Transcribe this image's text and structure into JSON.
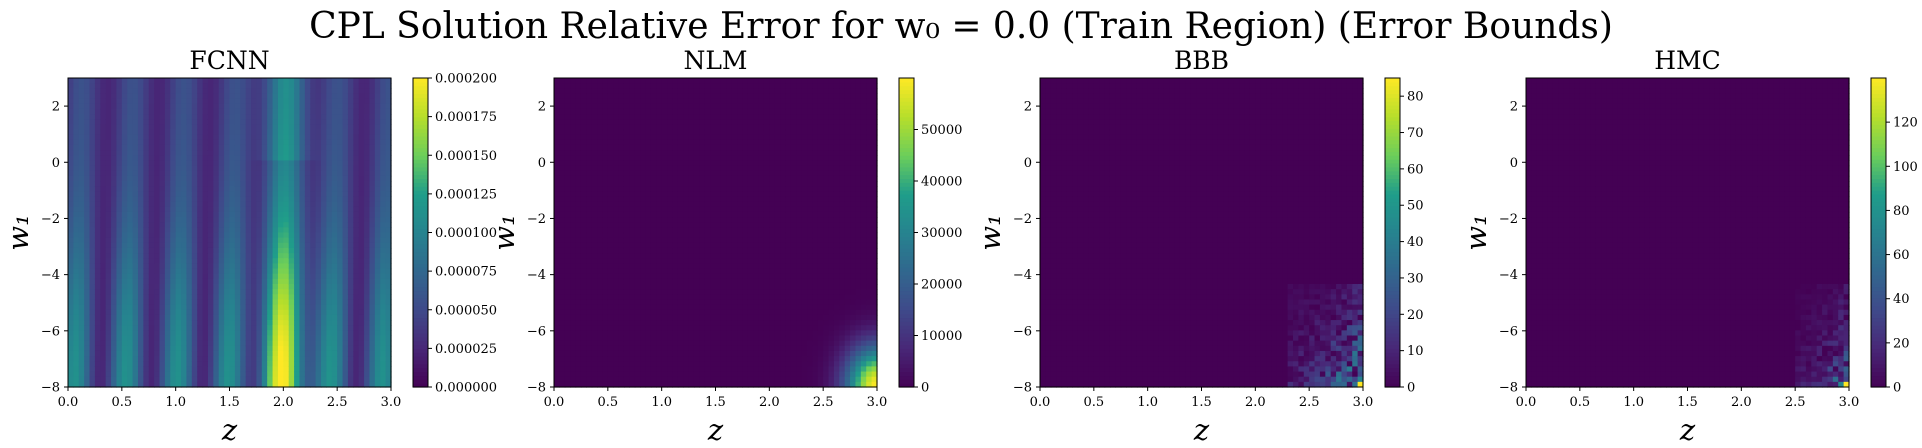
{
  "figure": {
    "title": "CPL Solution Relative Error for w₀ = 0.0 (Train Region) (Error Bounds)"
  },
  "colors": {
    "colormap": [
      "#440154",
      "#482777",
      "#3f4a8a",
      "#31678e",
      "#26838f",
      "#1f9d8a",
      "#6cce5a",
      "#b6de2b",
      "#fee825"
    ]
  },
  "chart_data": [
    {
      "type": "heatmap",
      "title": "FCNN",
      "xlabel": "z",
      "ylabel": "w₁",
      "xlim": [
        0.0,
        3.0
      ],
      "ylim": [
        -8,
        3
      ],
      "xticks": [
        "0.0",
        "0.5",
        "1.0",
        "1.5",
        "2.0",
        "2.5",
        "3.0"
      ],
      "yticks": [
        "−8",
        "−6",
        "−4",
        "−2",
        "0",
        "2"
      ],
      "colorbar": {
        "range": [
          0.0,
          0.0002
        ],
        "ticks": [
          "0.000000",
          "0.000025",
          "0.000050",
          "0.000075",
          "0.000100",
          "0.000125",
          "0.000150",
          "0.000175",
          "0.000200"
        ]
      },
      "field": "stripes: vertical bands in z, strongest near z=2.0 at w1=-8 (~0.0002)"
    },
    {
      "type": "heatmap",
      "title": "NLM",
      "xlabel": "z",
      "ylabel": "w₁",
      "xlim": [
        0.0,
        3.0
      ],
      "ylim": [
        -8,
        3
      ],
      "xticks": [
        "0.0",
        "0.5",
        "1.0",
        "1.5",
        "2.0",
        "2.5",
        "3.0"
      ],
      "yticks": [
        "−8",
        "−6",
        "−4",
        "−2",
        "0",
        "2"
      ],
      "colorbar": {
        "range": [
          0,
          60000
        ],
        "ticks": [
          "0",
          "10000",
          "20000",
          "30000",
          "40000",
          "50000"
        ]
      },
      "field": "near zero everywhere, rising smoothly toward corner z=3.0, w1=-8 (~60000)"
    },
    {
      "type": "heatmap",
      "title": "BBB",
      "xlabel": "z",
      "ylabel": "w₁",
      "xlim": [
        0.0,
        3.0
      ],
      "ylim": [
        -8,
        3
      ],
      "xticks": [
        "0.0",
        "0.5",
        "1.0",
        "1.5",
        "2.0",
        "2.5",
        "3.0"
      ],
      "yticks": [
        "−8",
        "−6",
        "−4",
        "−2",
        "0",
        "2"
      ],
      "colorbar": {
        "range": [
          0,
          85
        ],
        "ticks": [
          "0",
          "10",
          "20",
          "30",
          "40",
          "50",
          "60",
          "70",
          "80"
        ]
      },
      "field": "near zero except noisy patch for z>2.3, w1<-5, peak ~85 at z=3.0, w1=-8"
    },
    {
      "type": "heatmap",
      "title": "HMC",
      "xlabel": "z",
      "ylabel": "w₁",
      "xlim": [
        0.0,
        3.0
      ],
      "ylim": [
        -8,
        3
      ],
      "xticks": [
        "0.0",
        "0.5",
        "1.0",
        "1.5",
        "2.0",
        "2.5",
        "3.0"
      ],
      "yticks": [
        "−8",
        "−6",
        "−4",
        "−2",
        "0",
        "2"
      ],
      "colorbar": {
        "range": [
          0,
          140
        ],
        "ticks": [
          "0",
          "20",
          "40",
          "60",
          "80",
          "100",
          "120"
        ]
      },
      "field": "near zero except noisy patch for z>2.5, w1<-5, peak ~140 at z=3.0, w1=-8"
    }
  ]
}
